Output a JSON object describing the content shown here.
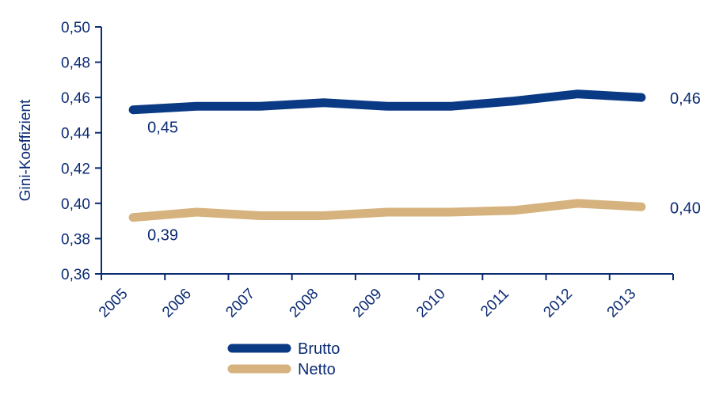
{
  "chart_data": {
    "type": "line",
    "title": "",
    "xlabel": "",
    "ylabel": "Gini-Koeffizient",
    "categories": [
      "2005",
      "2006",
      "2007",
      "2008",
      "2009",
      "2010",
      "2011",
      "2012",
      "2013"
    ],
    "series": [
      {
        "name": "Brutto",
        "color": "#0b3a85",
        "values": [
          0.453,
          0.455,
          0.455,
          0.457,
          0.455,
          0.455,
          0.458,
          0.462,
          0.46
        ]
      },
      {
        "name": "Netto",
        "color": "#d6b27e",
        "values": [
          0.392,
          0.395,
          0.393,
          0.393,
          0.395,
          0.395,
          0.396,
          0.4,
          0.398
        ]
      }
    ],
    "ylim": [
      0.36,
      0.5
    ],
    "yticks": [
      "0,36",
      "0,38",
      "0,40",
      "0,42",
      "0,44",
      "0,46",
      "0,48",
      "0,50"
    ],
    "grid": false,
    "legend_position": "bottom-left",
    "annotations": [
      {
        "series": "Brutto",
        "point": "first",
        "text": "0,45"
      },
      {
        "series": "Brutto",
        "point": "last",
        "text": "0,46"
      },
      {
        "series": "Netto",
        "point": "first",
        "text": "0,39"
      },
      {
        "series": "Netto",
        "point": "last",
        "text": "0,40"
      }
    ],
    "axis_color": "#0b2b73"
  }
}
